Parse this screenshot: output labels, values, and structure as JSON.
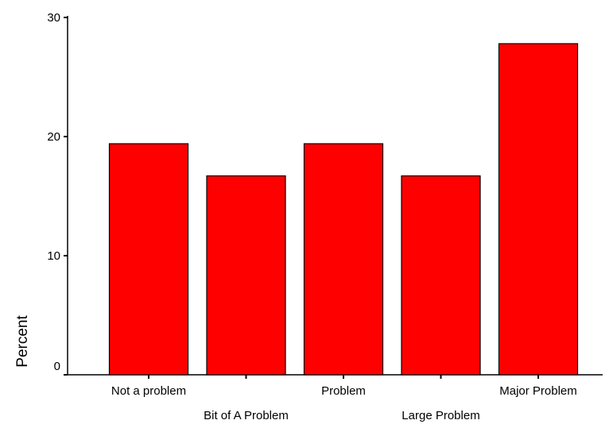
{
  "chart_data": {
    "type": "bar",
    "title": "",
    "xlabel": "",
    "ylabel": "Percent",
    "ylim": [
      0,
      30
    ],
    "yticks": [
      0,
      10,
      20,
      30
    ],
    "grid": false,
    "categories": [
      "Not a problem",
      "Bit of A Problem",
      "Problem",
      "Large Problem",
      "Major Problem"
    ],
    "values": [
      19.4,
      16.7,
      19.4,
      16.7,
      27.8
    ],
    "bar_color": "#ff0000",
    "bar_edge_color": "#000000"
  }
}
